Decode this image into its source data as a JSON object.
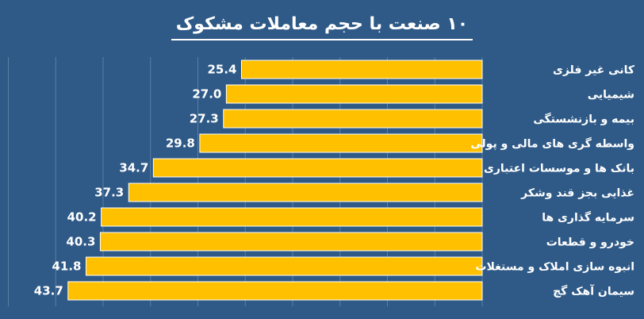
{
  "chart_data": {
    "type": "bar",
    "orientation": "horizontal",
    "title": "۱۰ صنعت با حجم معاملات مشکوک",
    "categories": [
      "کانی غیر فلزی",
      "شیمیایی",
      "بیمه و بازنشستگی",
      "واسطه گری های مالی و پولی",
      "بانک ها و موسسات اعتباری",
      "غذایی بجز قند وشکر",
      "سرمایه گذاری ها",
      "خودرو و قطعات",
      "انبوه سازی املاک و مستغلات",
      "سیمان آهک گچ"
    ],
    "values": [
      25.4,
      27.0,
      27.3,
      29.8,
      34.7,
      37.3,
      40.2,
      40.3,
      41.8,
      43.7
    ],
    "value_labels": [
      "25.4",
      "27.0",
      "27.3",
      "29.8",
      "34.7",
      "37.3",
      "40.2",
      "40.3",
      "41.8",
      "43.7"
    ],
    "xlim": [
      0,
      50
    ],
    "x_direction": "right-to-left",
    "grid": true,
    "legend": "none",
    "colors": {
      "background": "#2f5a87",
      "bar": "#ffc000",
      "bar_outline": "#ffffff",
      "grid": "#5a7fa6",
      "text": "#ffffff"
    }
  }
}
